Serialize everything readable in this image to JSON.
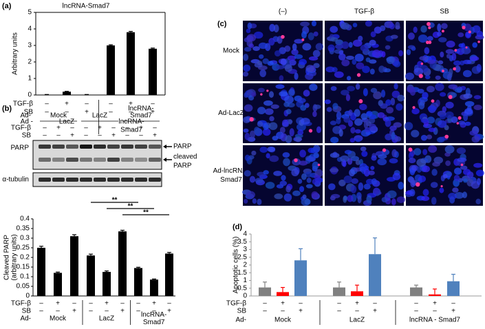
{
  "chart_data": [
    {
      "type": "bar",
      "panel": "(a)",
      "title": "lncRNA-Smad7",
      "y_label": "Arbitrary units",
      "values": [
        0.02,
        0.2,
        0.02,
        3.0,
        3.8,
        2.8
      ],
      "errors": [
        0.01,
        0.02,
        0.01,
        0.04,
        0.05,
        0.04
      ],
      "color": "#000000",
      "ylim": [
        0,
        5
      ],
      "yticks": [
        0,
        1,
        2,
        3,
        4,
        5
      ],
      "treatments": [
        {
          "label": "TGF-β",
          "marks": [
            "–",
            "+",
            "–",
            "–",
            "+",
            "–"
          ]
        },
        {
          "label": "SB",
          "marks": [
            "–",
            "–",
            "+",
            "–",
            "–",
            "+"
          ]
        }
      ],
      "group_row_label": "Ad -",
      "groups": [
        [
          "LacZ"
        ],
        [
          "lncRNA-",
          "Smad7"
        ]
      ]
    },
    {
      "type": "bar",
      "y_label": [
        "Cleaved PARP",
        "(arbitrary units)"
      ],
      "values": [
        0.25,
        0.12,
        0.31,
        0.21,
        0.125,
        0.335,
        0.145,
        0.085,
        0.22
      ],
      "errors": [
        0.008,
        0.004,
        0.008,
        0.007,
        0.005,
        0.006,
        0.004,
        0.003,
        0.006
      ],
      "color": "#000000",
      "ylim": [
        0,
        0.4
      ],
      "yticks": [
        0,
        0.05,
        0.1,
        0.15,
        0.2,
        0.25,
        0.3,
        0.35,
        0.4
      ],
      "treatments": [
        {
          "label": "TGF-β",
          "marks": [
            "–",
            "+",
            "–",
            "–",
            "+",
            "–",
            "–",
            "+",
            "–"
          ]
        },
        {
          "label": "SB",
          "marks": [
            "–",
            "–",
            "+",
            "–",
            "–",
            "+",
            "–",
            "–",
            "+"
          ]
        }
      ],
      "group_row_label": "Ad-",
      "groups": [
        [
          "Mock"
        ],
        [
          "LacZ"
        ],
        [
          "lncRNA-",
          "Smad7"
        ]
      ],
      "annotations": [
        "**",
        "**",
        "**"
      ]
    },
    {
      "type": "bar",
      "panel": "(d)",
      "y_label": "Apoptotic cells (%)",
      "values": [
        0.55,
        0.25,
        2.3,
        0.55,
        0.3,
        2.7,
        0.55,
        0.1,
        0.95
      ],
      "errors": [
        0.35,
        0.3,
        0.75,
        0.35,
        0.4,
        1.05,
        0.15,
        0.35,
        0.45
      ],
      "colors": [
        "#808080",
        "#ff0000",
        "#4f81bd",
        "#808080",
        "#ff0000",
        "#4f81bd",
        "#808080",
        "#ff0000",
        "#4f81bd"
      ],
      "ylim": [
        0,
        4
      ],
      "yticks": [
        0,
        0.5,
        1,
        1.5,
        2,
        2.5,
        3,
        3.5,
        4
      ],
      "treatments": [
        {
          "label": "TGF-β",
          "marks": [
            "–",
            "+",
            "–",
            "–",
            "+",
            "–",
            "–",
            "+",
            "–"
          ]
        },
        {
          "label": "SB",
          "marks": [
            "–",
            "–",
            "+",
            "–",
            "–",
            "+",
            "–",
            "–",
            "+"
          ]
        }
      ],
      "group_row_label": "Ad-",
      "groups": [
        [
          "Mock"
        ],
        [
          "LacZ"
        ],
        [
          "lncRNA - Smad7"
        ]
      ]
    }
  ],
  "blot": {
    "panel": "(b)",
    "header_label": "Ad-",
    "groups": [
      [
        "Mock"
      ],
      [
        "LacZ"
      ],
      [
        "lncRNA-",
        "Smad7"
      ]
    ],
    "treatments": [
      {
        "label": "TGF-β",
        "marks": [
          "–",
          "+",
          "–",
          "–",
          "+",
          "–",
          "–",
          "+",
          "–"
        ]
      },
      {
        "label": "SB",
        "marks": [
          "–",
          "–",
          "+",
          "–",
          "–",
          "+",
          "–",
          "–",
          "+"
        ]
      }
    ],
    "rows": [
      "PARP",
      "α-tubulin"
    ],
    "arrows": [
      "PARP",
      "cleaved",
      "PARP"
    ]
  },
  "micrographs": {
    "panel": "(c)",
    "columns": [
      "(–)",
      "TGF-β",
      "SB"
    ],
    "rows": [
      [
        "Mock"
      ],
      [
        "Ad-LacZ"
      ],
      [
        "Ad-lncRNA-",
        "Smad7"
      ]
    ]
  }
}
